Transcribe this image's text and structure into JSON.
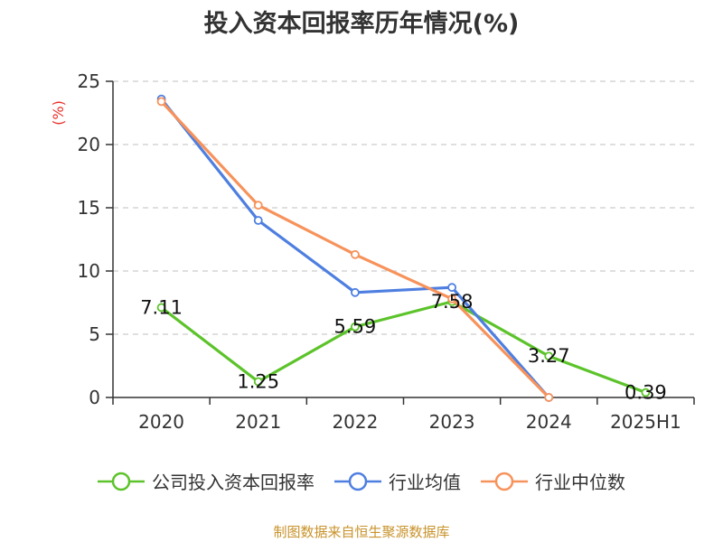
{
  "chart_data": {
    "type": "line",
    "title": "投入资本回报率历年情况(%)",
    "ylabel": "(%)",
    "xlabel": "",
    "categories": [
      "2020",
      "2021",
      "2022",
      "2023",
      "2024",
      "2025H1"
    ],
    "ylim": [
      0,
      25
    ],
    "yticks": [
      0,
      5,
      10,
      15,
      20,
      25
    ],
    "grid": true,
    "legend_position": "bottom",
    "series": [
      {
        "name": "公司投入资本回报率",
        "color": "#5cc32a",
        "values": [
          7.11,
          1.25,
          5.59,
          7.58,
          3.27,
          0.39
        ],
        "labels": [
          "7.11",
          "1.25",
          "5.59",
          "7.58",
          "3.27",
          "0.39"
        ]
      },
      {
        "name": "行业均值",
        "color": "#4e7fe0",
        "values": [
          23.6,
          14.0,
          8.3,
          8.7,
          0.0,
          null
        ]
      },
      {
        "name": "行业中位数",
        "color": "#f7925b",
        "values": [
          23.4,
          15.2,
          11.3,
          7.8,
          0.0,
          null
        ]
      }
    ],
    "source": "制图数据来自恒生聚源数据库"
  }
}
